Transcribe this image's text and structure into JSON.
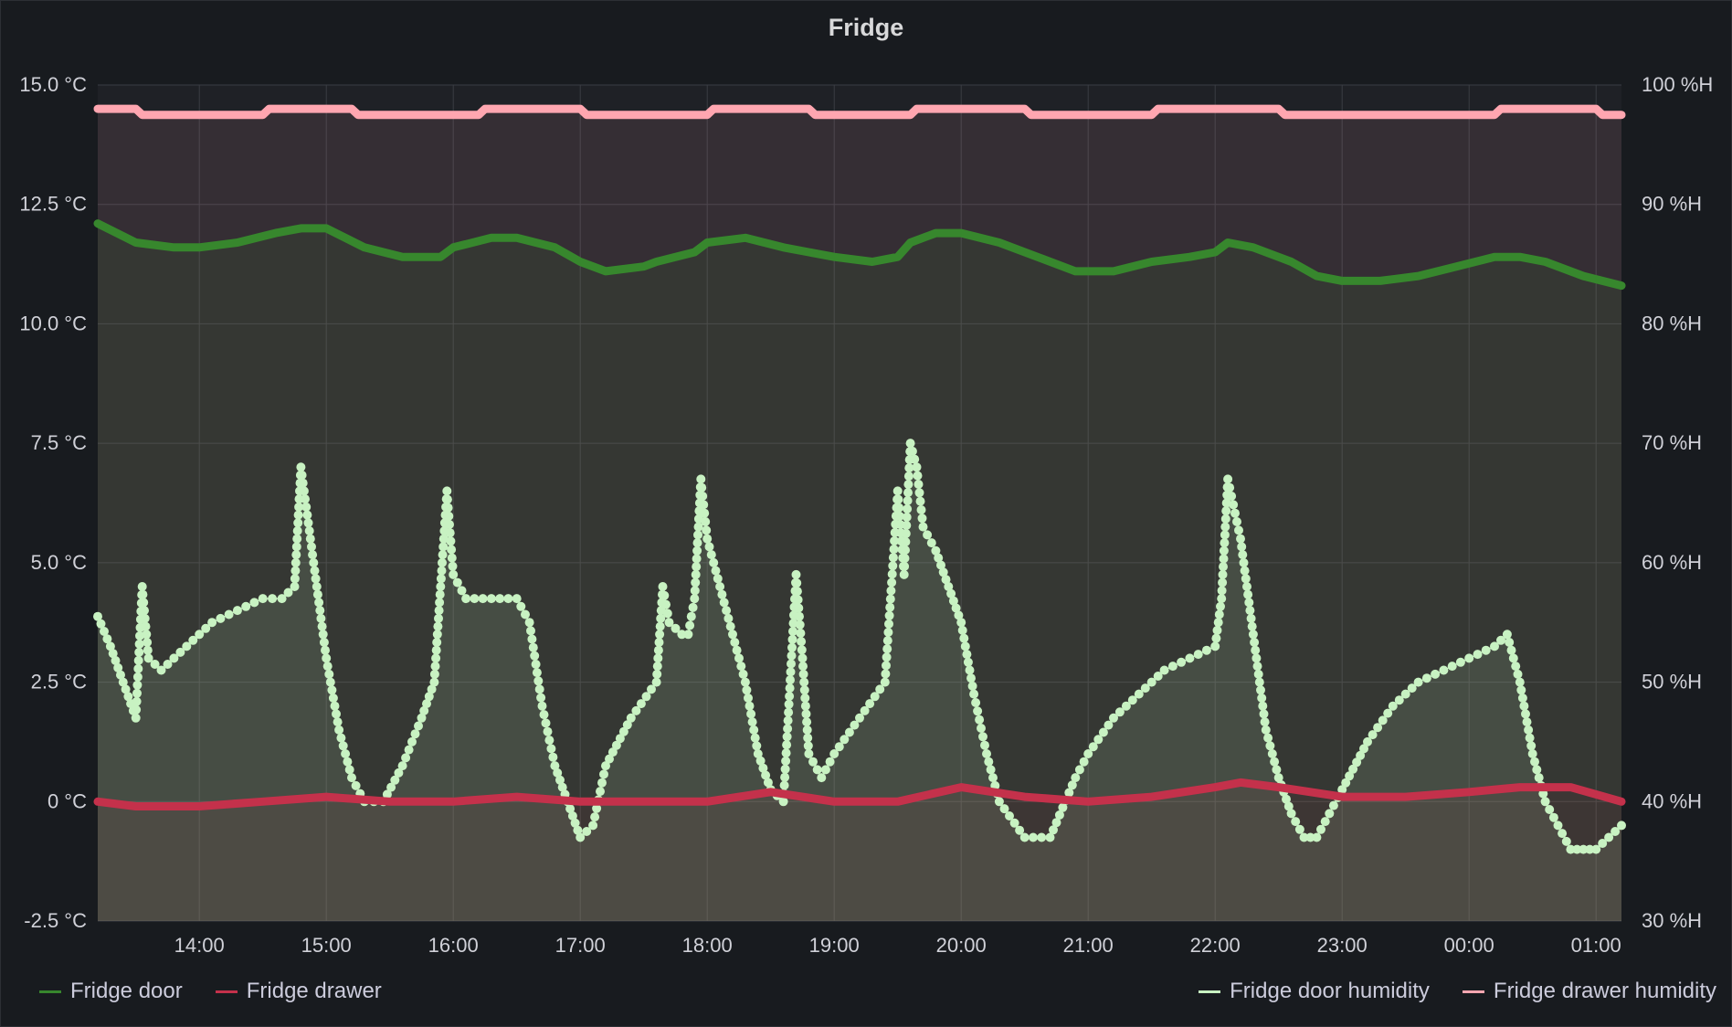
{
  "chart_data": {
    "type": "line",
    "title": "Fridge",
    "x_ticks": [
      "14:00",
      "15:00",
      "16:00",
      "17:00",
      "18:00",
      "19:00",
      "20:00",
      "21:00",
      "22:00",
      "23:00",
      "00:00",
      "01:00"
    ],
    "x_range_hours": [
      13.2,
      25.2
    ],
    "y_left": {
      "unit": "°C",
      "range": [
        -2.5,
        15.0
      ],
      "ticks": [
        "15.0 °C",
        "12.5 °C",
        "10.0 °C",
        "7.5 °C",
        "5.0 °C",
        "2.5 °C",
        "0 °C",
        "-2.5 °C"
      ],
      "tick_values": [
        15.0,
        12.5,
        10.0,
        7.5,
        5.0,
        2.5,
        0,
        -2.5
      ]
    },
    "y_right": {
      "unit": "%H",
      "range": [
        30,
        100
      ],
      "ticks": [
        "100 %H",
        "90 %H",
        "80 %H",
        "70 %H",
        "60 %H",
        "50 %H",
        "40 %H",
        "30 %H"
      ],
      "tick_values": [
        100,
        90,
        80,
        70,
        60,
        50,
        40,
        30
      ]
    },
    "series": [
      {
        "name": "Fridge door",
        "axis": "left",
        "color": "#37872d",
        "style": "thick-line",
        "x": [
          13.2,
          13.5,
          13.8,
          14.0,
          14.3,
          14.6,
          14.8,
          15.0,
          15.3,
          15.6,
          15.9,
          16.0,
          16.3,
          16.5,
          16.8,
          17.0,
          17.2,
          17.5,
          17.6,
          17.9,
          18.0,
          18.3,
          18.6,
          18.8,
          19.0,
          19.3,
          19.5,
          19.6,
          19.8,
          20.0,
          20.3,
          20.6,
          20.9,
          21.2,
          21.5,
          21.8,
          22.0,
          22.1,
          22.3,
          22.6,
          22.8,
          23.0,
          23.3,
          23.6,
          23.9,
          24.2,
          24.4,
          24.6,
          24.9,
          25.2
        ],
        "y": [
          12.1,
          11.7,
          11.6,
          11.6,
          11.7,
          11.9,
          12.0,
          12.0,
          11.6,
          11.4,
          11.4,
          11.6,
          11.8,
          11.8,
          11.6,
          11.3,
          11.1,
          11.2,
          11.3,
          11.5,
          11.7,
          11.8,
          11.6,
          11.5,
          11.4,
          11.3,
          11.4,
          11.7,
          11.9,
          11.9,
          11.7,
          11.4,
          11.1,
          11.1,
          11.3,
          11.4,
          11.5,
          11.7,
          11.6,
          11.3,
          11.0,
          10.9,
          10.9,
          11.0,
          11.2,
          11.4,
          11.4,
          11.3,
          11.0,
          10.8
        ]
      },
      {
        "name": "Fridge drawer",
        "axis": "left",
        "color": "#c4314b",
        "style": "thick-line",
        "x": [
          13.2,
          13.5,
          14.0,
          14.5,
          15.0,
          15.5,
          16.0,
          16.5,
          17.0,
          17.5,
          18.0,
          18.5,
          19.0,
          19.5,
          20.0,
          20.5,
          21.0,
          21.5,
          22.0,
          22.2,
          22.5,
          23.0,
          23.5,
          24.0,
          24.4,
          24.8,
          25.2
        ],
        "y": [
          0.0,
          -0.1,
          -0.1,
          0.0,
          0.1,
          0.0,
          0.0,
          0.1,
          0.0,
          0.0,
          0.0,
          0.2,
          0.0,
          0.0,
          0.3,
          0.1,
          0.0,
          0.1,
          0.3,
          0.4,
          0.3,
          0.1,
          0.1,
          0.2,
          0.3,
          0.3,
          0.0
        ]
      },
      {
        "name": "Fridge door humidity",
        "axis": "right",
        "color": "#c8f2c2",
        "style": "dots-fill",
        "x": [
          13.2,
          13.3,
          13.4,
          13.5,
          13.55,
          13.6,
          13.7,
          13.9,
          14.1,
          14.3,
          14.5,
          14.65,
          14.75,
          14.8,
          14.9,
          15.0,
          15.1,
          15.2,
          15.3,
          15.45,
          15.6,
          15.75,
          15.85,
          15.9,
          15.95,
          16.0,
          16.1,
          16.3,
          16.5,
          16.6,
          16.7,
          16.8,
          16.9,
          17.0,
          17.1,
          17.2,
          17.4,
          17.6,
          17.65,
          17.7,
          17.8,
          17.85,
          17.9,
          17.95,
          18.0,
          18.1,
          18.3,
          18.4,
          18.5,
          18.6,
          18.7,
          18.75,
          18.8,
          18.9,
          19.0,
          19.2,
          19.4,
          19.5,
          19.55,
          19.6,
          19.65,
          19.7,
          19.8,
          19.9,
          20.0,
          20.1,
          20.2,
          20.3,
          20.5,
          20.7,
          20.9,
          21.0,
          21.2,
          21.4,
          21.6,
          21.8,
          22.0,
          22.05,
          22.1,
          22.2,
          22.3,
          22.4,
          22.5,
          22.6,
          22.7,
          22.8,
          22.9,
          23.0,
          23.2,
          23.4,
          23.6,
          23.8,
          24.0,
          24.2,
          24.3,
          24.4,
          24.5,
          24.6,
          24.7,
          24.8,
          24.9,
          25.0,
          25.1,
          25.2
        ],
        "y": [
          55.5,
          53,
          50,
          47,
          58,
          52,
          51,
          53,
          55,
          56,
          57,
          57,
          58,
          68,
          60,
          52,
          46,
          42,
          40,
          40,
          43,
          47,
          50,
          58,
          66,
          59,
          57,
          57,
          57,
          55,
          48,
          43,
          40,
          37,
          38,
          43,
          47,
          50,
          58,
          55,
          54,
          54,
          57,
          67,
          62,
          58,
          50,
          44,
          41,
          40,
          59,
          52,
          44,
          42,
          44,
          47,
          50,
          66,
          59,
          70,
          68,
          63,
          61,
          58,
          55,
          49,
          44,
          40,
          37,
          37,
          42,
          44,
          47,
          49,
          51,
          52,
          53,
          57,
          67,
          62,
          54,
          46,
          42,
          39,
          37,
          37,
          39,
          41,
          45,
          48,
          50,
          51,
          52,
          53,
          54,
          50,
          44,
          40,
          38,
          36,
          36,
          36,
          37,
          38
        ]
      },
      {
        "name": "Fridge drawer humidity",
        "axis": "right",
        "color": "#ffa6b0",
        "style": "thick-steps",
        "x": [
          13.2,
          13.5,
          13.55,
          13.6,
          14.5,
          14.55,
          14.6,
          15.2,
          15.25,
          15.3,
          16.2,
          16.25,
          16.3,
          17.0,
          17.05,
          17.1,
          18.0,
          18.05,
          18.1,
          18.8,
          18.85,
          18.9,
          19.6,
          19.65,
          19.7,
          20.5,
          20.55,
          20.6,
          21.5,
          21.55,
          21.6,
          22.5,
          22.55,
          22.6,
          24.2,
          24.25,
          24.3,
          25.0,
          25.05,
          25.2
        ],
        "y": [
          98,
          98,
          97.5,
          97.5,
          97.5,
          98,
          98,
          98,
          97.5,
          97.5,
          97.5,
          98,
          98,
          98,
          97.5,
          97.5,
          97.5,
          98,
          98,
          98,
          97.5,
          97.5,
          97.5,
          98,
          98,
          98,
          97.5,
          97.5,
          97.5,
          98,
          98,
          98,
          97.5,
          97.5,
          97.5,
          98,
          98,
          98,
          97.5,
          97.5
        ]
      }
    ],
    "legend_left": [
      "Fridge door",
      "Fridge drawer"
    ],
    "legend_right": [
      "Fridge door humidity",
      "Fridge drawer humidity"
    ],
    "grid": true
  }
}
